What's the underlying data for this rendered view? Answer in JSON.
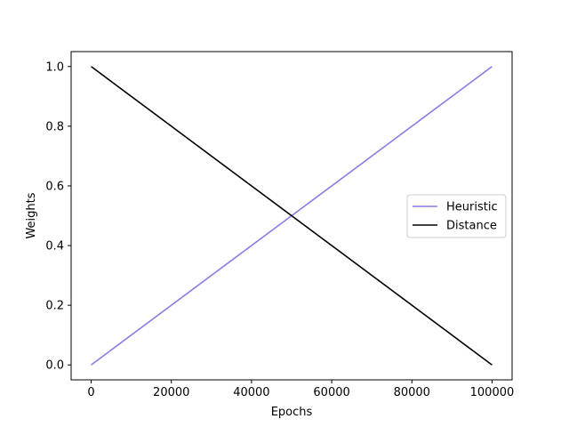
{
  "chart_data": {
    "type": "line",
    "xlabel": "Epochs",
    "ylabel": "Weights",
    "xlim": [
      -5000,
      105000
    ],
    "ylim": [
      -0.05,
      1.05
    ],
    "xticks": [
      0,
      20000,
      40000,
      60000,
      80000,
      100000
    ],
    "xtick_labels": [
      "0",
      "20000",
      "40000",
      "60000",
      "80000",
      "100000"
    ],
    "yticks": [
      0.0,
      0.2,
      0.4,
      0.6,
      0.8,
      1.0
    ],
    "ytick_labels": [
      "0.0",
      "0.2",
      "0.4",
      "0.6",
      "0.8",
      "1.0"
    ],
    "grid": false,
    "legend_position": "center-right",
    "series": [
      {
        "name": "Heuristic",
        "color": "#8b7be6",
        "x": [
          0,
          100000
        ],
        "y": [
          0.0,
          1.0
        ]
      },
      {
        "name": "Distance",
        "color": "#000000",
        "x": [
          0,
          100000
        ],
        "y": [
          1.0,
          0.0
        ]
      }
    ]
  }
}
